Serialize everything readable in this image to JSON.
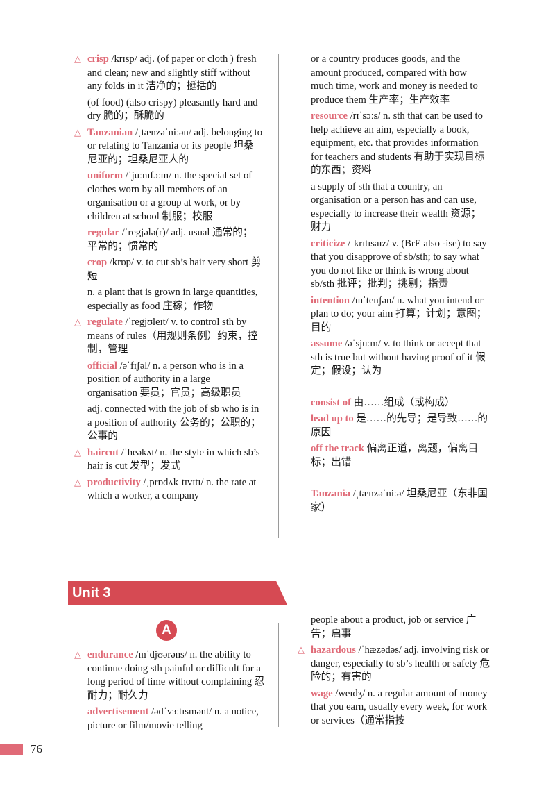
{
  "page": {
    "unit_title": "Unit 3",
    "section_letter": "A",
    "page_number": "76"
  },
  "top_left": [
    {
      "tri": true,
      "head": "crisp",
      "text": " /krɪsp/ adj. (of paper or cloth ) fresh and clean; new and slightly stiff without any folds in it 洁净的；挺括的"
    },
    {
      "tri": false,
      "head": "",
      "text": "(of food) (also crispy) pleasantly hard and dry 脆的；酥脆的"
    },
    {
      "tri": true,
      "head": "Tanzanian",
      "text": " /ˌtænzəˈniːən/ adj. belonging to or relating to Tanzania or its people 坦桑尼亚的；坦桑尼亚人的"
    },
    {
      "tri": false,
      "head": "uniform",
      "text": " /ˈjuːnɪfɔːm/ n. the special set of clothes worn by all members of an organisation or a group at work, or by children at school 制服；校服"
    },
    {
      "tri": false,
      "head": "regular",
      "text": " /ˈregjələ(r)/ adj. usual 通常的；平常的；惯常的"
    },
    {
      "tri": false,
      "head": "crop",
      "text": " /krɒp/ v. to cut sb’s hair very short 剪短"
    },
    {
      "tri": false,
      "head": "",
      "text": "n. a plant that is grown in large quantities, especially as food 庄稼；作物"
    },
    {
      "tri": true,
      "head": "regulate",
      "text": " /ˈregjʊleɪt/ v. to control sth by means of rules（用规则条例）约束，控制，管理"
    },
    {
      "tri": false,
      "head": "official",
      "text": " /əˈfɪʃəl/ n. a person who is in a position of authority in a large organisation 要员；官员；高级职员"
    },
    {
      "tri": false,
      "head": "",
      "text": "adj. connected with the job of sb who is in a position of authority 公务的；公职的；公事的"
    },
    {
      "tri": true,
      "head": "haircut",
      "text": " /ˈheəkʌt/ n. the style in which sb’s hair is cut 发型；发式"
    },
    {
      "tri": true,
      "head": "productivity",
      "text": " /ˌprɒdʌkˈtɪvɪtɪ/ n. the rate at which a worker, a company"
    }
  ],
  "top_right": [
    {
      "tri": false,
      "head": "",
      "text": "or a country produces goods, and the amount produced, compared with how much time, work and money is needed to produce them 生产率；生产效率"
    },
    {
      "tri": false,
      "head": "resource",
      "text": " /rɪˈsɔːs/ n. sth that can be used to help achieve an aim, especially a book, equipment, etc. that provides information for teachers and students 有助于实现目标的东西；资料"
    },
    {
      "tri": false,
      "head": "",
      "text": "a supply of sth that a country, an organisation or a person has and can use, especially to increase their wealth 资源；财力"
    },
    {
      "tri": false,
      "head": "criticize",
      "text": " /ˈkrɪtɪsaɪz/ v. (BrE also -ise) to say that you disapprove of sb/sth; to say what you do not like or think is wrong about sb/sth 批评；批判；挑剔；指责"
    },
    {
      "tri": false,
      "head": "intention",
      "text": " /ɪnˈtenʃən/ n. what you intend or plan to do; your aim 打算；计划；意图；目的"
    },
    {
      "tri": false,
      "head": "assume",
      "text": " /əˈsjuːm/ v. to think or accept that sth is true but without having proof of it 假定；假设；认为"
    },
    {
      "gap": true
    },
    {
      "tri": false,
      "head": "consist of",
      "text": " 由……组成（或构成）"
    },
    {
      "tri": false,
      "head": "lead up to",
      "text": " 是……的先导；是导致……的原因"
    },
    {
      "tri": false,
      "head": "off the track",
      "text": " 偏离正道，离题，偏离目标；出错"
    },
    {
      "gap": true
    },
    {
      "tri": false,
      "head": "Tanzania",
      "text": " /ˌtænzəˈniːə/ 坦桑尼亚（东非国家）"
    }
  ],
  "bottom_left": [
    {
      "tri": true,
      "head": "endurance",
      "text": " /ɪnˈdjʊərəns/ n. the ability to continue doing sth painful or difficult for a long period of time without complaining 忍耐力；耐久力"
    },
    {
      "tri": false,
      "head": "advertisement",
      "text": " /ədˈvɜːtɪsmənt/ n. a notice, picture or film/movie telling"
    }
  ],
  "bottom_right": [
    {
      "tri": false,
      "head": "",
      "text": "people about a product, job or service 广告；启事"
    },
    {
      "tri": true,
      "head": "hazardous",
      "text": " /ˈhæzədəs/ adj. involving risk or danger, especially to sb’s health or safety 危险的；有害的"
    },
    {
      "tri": false,
      "head": "wage",
      "text": " /weɪdʒ/ n. a regular amount of money that you earn, usually every week, for work or services（通常指按"
    }
  ]
}
